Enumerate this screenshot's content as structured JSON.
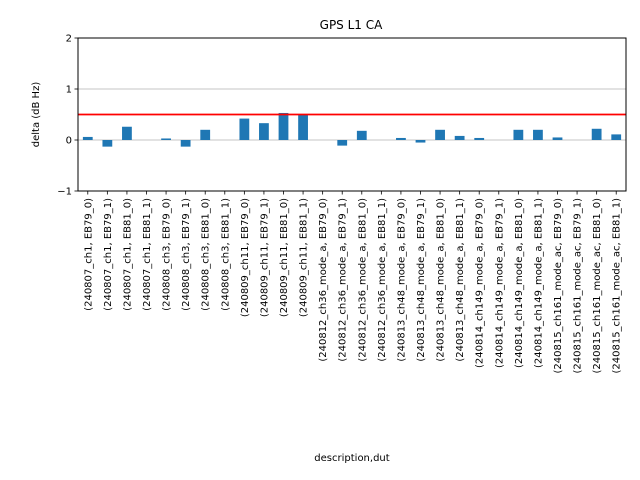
{
  "chart_data": {
    "type": "bar",
    "title": "GPS L1 CA",
    "xlabel": "description,dut",
    "ylabel": "delta (dB Hz)",
    "ylim": [
      -1,
      2
    ],
    "yticks": [
      -1,
      0,
      1,
      2
    ],
    "gridlines_y": [
      0,
      1
    ],
    "reference_line": {
      "y": 0.5,
      "color": "#ff0000"
    },
    "bar_color": "#1f77b4",
    "categories": [
      "(240807_ch1, EB79_0)",
      "(240807_ch1, EB79_1)",
      "(240807_ch1, EB81_0)",
      "(240807_ch1, EB81_1)",
      "(240808_ch3, EB79_0)",
      "(240808_ch3, EB79_1)",
      "(240808_ch3, EB81_0)",
      "(240808_ch3, EB81_1)",
      "(240809_ch11, EB79_0)",
      "(240809_ch11, EB79_1)",
      "(240809_ch11, EB81_0)",
      "(240809_ch11, EB81_1)",
      "(240812_ch36_mode_a, EB79_0)",
      "(240812_ch36_mode_a, EB79_1)",
      "(240812_ch36_mode_a, EB81_0)",
      "(240812_ch36_mode_a, EB81_1)",
      "(240813_ch48_mode_a, EB79_0)",
      "(240813_ch48_mode_a, EB79_1)",
      "(240813_ch48_mode_a, EB81_0)",
      "(240813_ch48_mode_a, EB81_1)",
      "(240814_ch149_mode_a, EB79_0)",
      "(240814_ch149_mode_a, EB79_1)",
      "(240814_ch149_mode_a, EB81_0)",
      "(240814_ch149_mode_a, EB81_1)",
      "(240815_ch161_mode_ac, EB79_0)",
      "(240815_ch161_mode_ac, EB79_1)",
      "(240815_ch161_mode_ac, EB81_0)",
      "(240815_ch161_mode_ac, EB81_1)"
    ],
    "values": [
      0.06,
      -0.13,
      0.26,
      0.0,
      0.03,
      -0.13,
      0.2,
      0.0,
      0.42,
      0.33,
      0.53,
      0.5,
      0.0,
      -0.11,
      0.18,
      0.0,
      0.04,
      -0.05,
      0.2,
      0.08,
      0.04,
      0.0,
      0.2,
      0.2,
      0.05,
      0.0,
      0.22,
      0.11
    ]
  }
}
